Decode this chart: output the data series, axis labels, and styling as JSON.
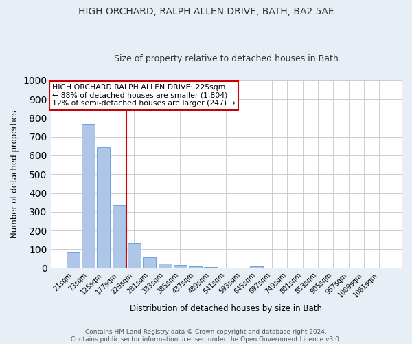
{
  "title1": "HIGH ORCHARD, RALPH ALLEN DRIVE, BATH, BA2 5AE",
  "title2": "Size of property relative to detached houses in Bath",
  "xlabel": "Distribution of detached houses by size in Bath",
  "ylabel": "Number of detached properties",
  "categories": [
    "21sqm",
    "73sqm",
    "125sqm",
    "177sqm",
    "229sqm",
    "281sqm",
    "333sqm",
    "385sqm",
    "437sqm",
    "489sqm",
    "541sqm",
    "593sqm",
    "645sqm",
    "697sqm",
    "749sqm",
    "801sqm",
    "853sqm",
    "905sqm",
    "957sqm",
    "1009sqm",
    "1061sqm"
  ],
  "values": [
    83,
    770,
    643,
    335,
    135,
    59,
    24,
    17,
    11,
    7,
    0,
    0,
    9,
    0,
    0,
    0,
    0,
    0,
    0,
    0,
    0
  ],
  "bar_color": "#aec6e8",
  "bar_edge_color": "#5b9bd5",
  "vline_pos": 3.5,
  "vline_color": "#cc0000",
  "ylim": [
    0,
    1000
  ],
  "yticks": [
    0,
    100,
    200,
    300,
    400,
    500,
    600,
    700,
    800,
    900,
    1000
  ],
  "annotation_text": "HIGH ORCHARD RALPH ALLEN DRIVE: 225sqm\n← 88% of detached houses are smaller (1,804)\n12% of semi-detached houses are larger (247) →",
  "footer1": "Contains HM Land Registry data © Crown copyright and database right 2024.",
  "footer2": "Contains public sector information licensed under the Open Government Licence v3.0.",
  "bg_color": "#e8eef5",
  "plot_bg_color": "#ffffff",
  "grid_color": "#cccccc",
  "title_fontsize": 10,
  "subtitle_fontsize": 9,
  "footer_fontsize": 6.5,
  "bar_width": 0.85
}
